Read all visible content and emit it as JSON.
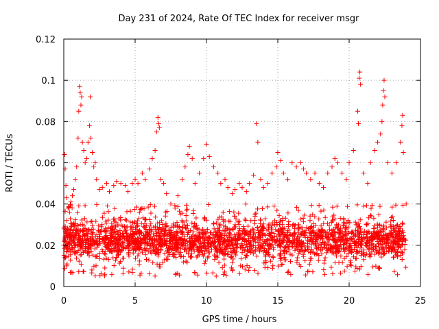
{
  "chart_data": {
    "type": "scatter",
    "title": "Day 231 of 2024, Rate Of TEC Index for receiver msgr",
    "xlabel": "GPS time / hours",
    "ylabel": "ROTI / TECUs",
    "xlim": [
      0,
      25
    ],
    "ylim": [
      0,
      0.12
    ],
    "xticks": [
      0,
      5,
      10,
      15,
      20,
      25
    ],
    "yticks": [
      0,
      0.02,
      0.04,
      0.06,
      0.08,
      0.1,
      0.12
    ],
    "xtick_labels": [
      "0",
      "5",
      "10",
      "15",
      "20",
      "25"
    ],
    "ytick_labels": [
      "0",
      "0.02",
      "0.04",
      "0.06",
      "0.08",
      "0.1",
      "0.12"
    ],
    "grid": true,
    "marker": "plus",
    "color": "#ff0000",
    "series": [
      {
        "name": "ROTI",
        "points": [
          [
            0.0,
            0.02
          ],
          [
            0.05,
            0.064
          ],
          [
            0.1,
            0.057
          ],
          [
            0.15,
            0.049
          ],
          [
            0.2,
            0.043
          ],
          [
            0.3,
            0.038
          ],
          [
            0.4,
            0.036
          ],
          [
            0.5,
            0.041
          ],
          [
            0.6,
            0.044
          ],
          [
            0.7,
            0.047
          ],
          [
            0.8,
            0.052
          ],
          [
            0.9,
            0.058
          ],
          [
            1.0,
            0.072
          ],
          [
            1.05,
            0.085
          ],
          [
            1.1,
            0.097
          ],
          [
            1.15,
            0.094
          ],
          [
            1.2,
            0.088
          ],
          [
            1.25,
            0.092
          ],
          [
            1.3,
            0.07
          ],
          [
            1.4,
            0.066
          ],
          [
            1.5,
            0.06
          ],
          [
            1.6,
            0.062
          ],
          [
            1.7,
            0.07
          ],
          [
            1.8,
            0.078
          ],
          [
            1.85,
            0.092
          ],
          [
            1.9,
            0.072
          ],
          [
            2.0,
            0.065
          ],
          [
            2.1,
            0.058
          ],
          [
            2.2,
            0.06
          ],
          [
            2.3,
            0.052
          ],
          [
            2.5,
            0.047
          ],
          [
            2.7,
            0.048
          ],
          [
            3.0,
            0.05
          ],
          [
            3.2,
            0.046
          ],
          [
            3.5,
            0.049
          ],
          [
            3.7,
            0.051
          ],
          [
            4.0,
            0.05
          ],
          [
            4.3,
            0.049
          ],
          [
            4.5,
            0.046
          ],
          [
            4.8,
            0.05
          ],
          [
            5.0,
            0.052
          ],
          [
            5.2,
            0.05
          ],
          [
            5.5,
            0.055
          ],
          [
            5.7,
            0.052
          ],
          [
            6.0,
            0.057
          ],
          [
            6.2,
            0.062
          ],
          [
            6.4,
            0.066
          ],
          [
            6.5,
            0.075
          ],
          [
            6.6,
            0.082
          ],
          [
            6.65,
            0.079
          ],
          [
            6.7,
            0.077
          ],
          [
            6.8,
            0.052
          ],
          [
            7.0,
            0.05
          ],
          [
            7.2,
            0.045
          ],
          [
            7.5,
            0.04
          ],
          [
            7.8,
            0.038
          ],
          [
            8.0,
            0.044
          ],
          [
            8.3,
            0.052
          ],
          [
            8.5,
            0.058
          ],
          [
            8.7,
            0.064
          ],
          [
            8.8,
            0.068
          ],
          [
            9.0,
            0.062
          ],
          [
            9.2,
            0.05
          ],
          [
            9.5,
            0.055
          ],
          [
            9.8,
            0.062
          ],
          [
            10.0,
            0.069
          ],
          [
            10.2,
            0.063
          ],
          [
            10.5,
            0.058
          ],
          [
            10.8,
            0.055
          ],
          [
            11.0,
            0.05
          ],
          [
            11.3,
            0.052
          ],
          [
            11.5,
            0.048
          ],
          [
            11.8,
            0.045
          ],
          [
            12.0,
            0.047
          ],
          [
            12.3,
            0.05
          ],
          [
            12.5,
            0.048
          ],
          [
            12.8,
            0.046
          ],
          [
            13.0,
            0.05
          ],
          [
            13.3,
            0.054
          ],
          [
            13.5,
            0.079
          ],
          [
            13.6,
            0.07
          ],
          [
            13.8,
            0.052
          ],
          [
            14.0,
            0.048
          ],
          [
            14.3,
            0.05
          ],
          [
            14.6,
            0.055
          ],
          [
            14.9,
            0.058
          ],
          [
            15.0,
            0.065
          ],
          [
            15.2,
            0.061
          ],
          [
            15.4,
            0.055
          ],
          [
            15.7,
            0.052
          ],
          [
            16.0,
            0.06
          ],
          [
            16.3,
            0.058
          ],
          [
            16.6,
            0.06
          ],
          [
            16.8,
            0.057
          ],
          [
            17.0,
            0.055
          ],
          [
            17.3,
            0.052
          ],
          [
            17.6,
            0.055
          ],
          [
            17.9,
            0.05
          ],
          [
            18.2,
            0.048
          ],
          [
            18.5,
            0.055
          ],
          [
            18.8,
            0.058
          ],
          [
            19.0,
            0.062
          ],
          [
            19.2,
            0.06
          ],
          [
            19.5,
            0.055
          ],
          [
            19.8,
            0.052
          ],
          [
            20.0,
            0.06
          ],
          [
            20.3,
            0.066
          ],
          [
            20.6,
            0.085
          ],
          [
            20.65,
            0.079
          ],
          [
            20.7,
            0.101
          ],
          [
            20.75,
            0.104
          ],
          [
            20.8,
            0.098
          ],
          [
            21.0,
            0.055
          ],
          [
            21.3,
            0.05
          ],
          [
            21.5,
            0.06
          ],
          [
            21.8,
            0.066
          ],
          [
            22.0,
            0.07
          ],
          [
            22.2,
            0.074
          ],
          [
            22.3,
            0.08
          ],
          [
            22.35,
            0.088
          ],
          [
            22.4,
            0.095
          ],
          [
            22.45,
            0.1
          ],
          [
            22.5,
            0.092
          ],
          [
            22.7,
            0.06
          ],
          [
            23.0,
            0.055
          ],
          [
            23.3,
            0.06
          ],
          [
            23.6,
            0.07
          ],
          [
            23.7,
            0.078
          ],
          [
            23.75,
            0.083
          ],
          [
            23.8,
            0.065
          ],
          [
            24.0,
            0.04
          ]
        ],
        "dense_band": {
          "x_range": [
            0,
            24
          ],
          "typical_range": [
            0.005,
            0.04
          ],
          "approx_count": 2600
        }
      }
    ]
  }
}
